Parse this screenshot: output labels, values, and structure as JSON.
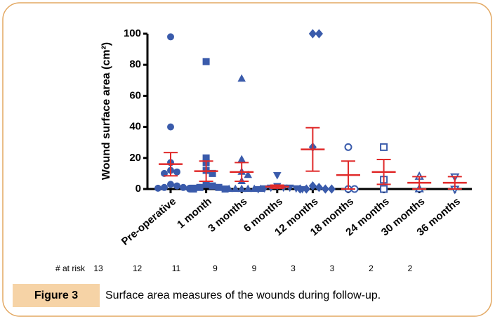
{
  "chart_data": {
    "type": "dot_plot",
    "y_label": "Wound surface area (cm²)",
    "categories": [
      "Pre-operative",
      "1 month",
      "3 months",
      "6 months",
      "12 months",
      "18 months",
      "24 months",
      "30 months",
      "36 months"
    ],
    "ylim": [
      0,
      100
    ],
    "yticks": [
      0,
      20,
      40,
      60,
      80,
      100
    ],
    "point_color": "#3a5bab",
    "summary_color": "#e02a2a",
    "groups": [
      {
        "marker": "circle",
        "filled": true,
        "points": [
          98,
          40,
          17,
          12,
          11,
          10,
          3,
          2,
          1,
          1,
          0.5,
          0.5,
          0
        ],
        "mean": 16,
        "error": 7.5
      },
      {
        "marker": "square",
        "filled": true,
        "points": [
          82,
          20,
          17,
          12,
          10,
          3,
          2,
          1,
          1,
          0.5,
          0,
          0
        ],
        "mean": 11.5,
        "error": 6.5
      },
      {
        "marker": "triangle-up",
        "filled": true,
        "points": [
          71,
          19,
          11,
          9,
          5,
          0,
          0,
          0,
          0,
          0,
          0
        ],
        "mean": 11,
        "error": 6
      },
      {
        "marker": "triangle-down",
        "filled": true,
        "points": [
          9,
          2,
          1,
          1,
          1,
          0.5,
          0.5,
          0,
          0
        ],
        "mean": 1.5,
        "error": 1
      },
      {
        "marker": "diamond",
        "filled": true,
        "points": [
          100,
          100,
          27,
          2,
          1,
          0,
          0,
          0,
          0
        ],
        "mean": 25.5,
        "error": 14
      },
      {
        "marker": "circle",
        "filled": false,
        "points": [
          27,
          0,
          0
        ],
        "mean": 9,
        "error": 9
      },
      {
        "marker": "square",
        "filled": false,
        "points": [
          27,
          6,
          0
        ],
        "mean": 11,
        "error": 8
      },
      {
        "marker": "triangle-up",
        "filled": false,
        "points": [
          8,
          0
        ],
        "mean": 4,
        "error": 4
      },
      {
        "marker": "triangle-down",
        "filled": false,
        "points": [
          8,
          0
        ],
        "mean": 4,
        "error": 4
      }
    ],
    "at_risk_label": "# at risk",
    "at_risk": [
      "13",
      "12",
      "11",
      "9",
      "9",
      "3",
      "3",
      "2",
      "2"
    ]
  },
  "caption": {
    "label": "Figure 3",
    "text": "Surface area measures of the wounds during follow-up."
  }
}
